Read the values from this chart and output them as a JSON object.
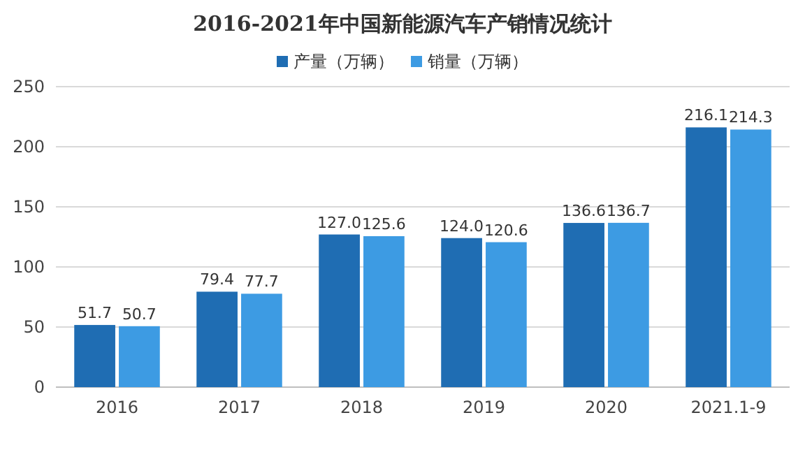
{
  "chart_data": {
    "type": "bar",
    "title": "2016-2021年中国新能源汽车产销情况统计",
    "categories": [
      "2016",
      "2017",
      "2018",
      "2019",
      "2020",
      "2021.1-9"
    ],
    "series": [
      {
        "name": "产量（万辆）",
        "color": "#1f6db3",
        "values": [
          51.7,
          79.4,
          127.0,
          124.0,
          136.6,
          216.1
        ],
        "value_labels": [
          "51.7",
          "79.4",
          "127.0",
          "124.0",
          "136.6",
          "216.1"
        ]
      },
      {
        "name": "销量（万辆）",
        "color": "#3d9be3",
        "values": [
          50.7,
          77.7,
          125.6,
          120.6,
          136.7,
          214.3
        ],
        "value_labels": [
          "50.7",
          "77.7",
          "125.6",
          "120.6",
          "136.7",
          "214.3"
        ]
      }
    ],
    "ylim": [
      0,
      250
    ],
    "yticks": [
      0,
      50,
      100,
      150,
      200,
      250
    ],
    "grid": "y",
    "legend": "top"
  }
}
